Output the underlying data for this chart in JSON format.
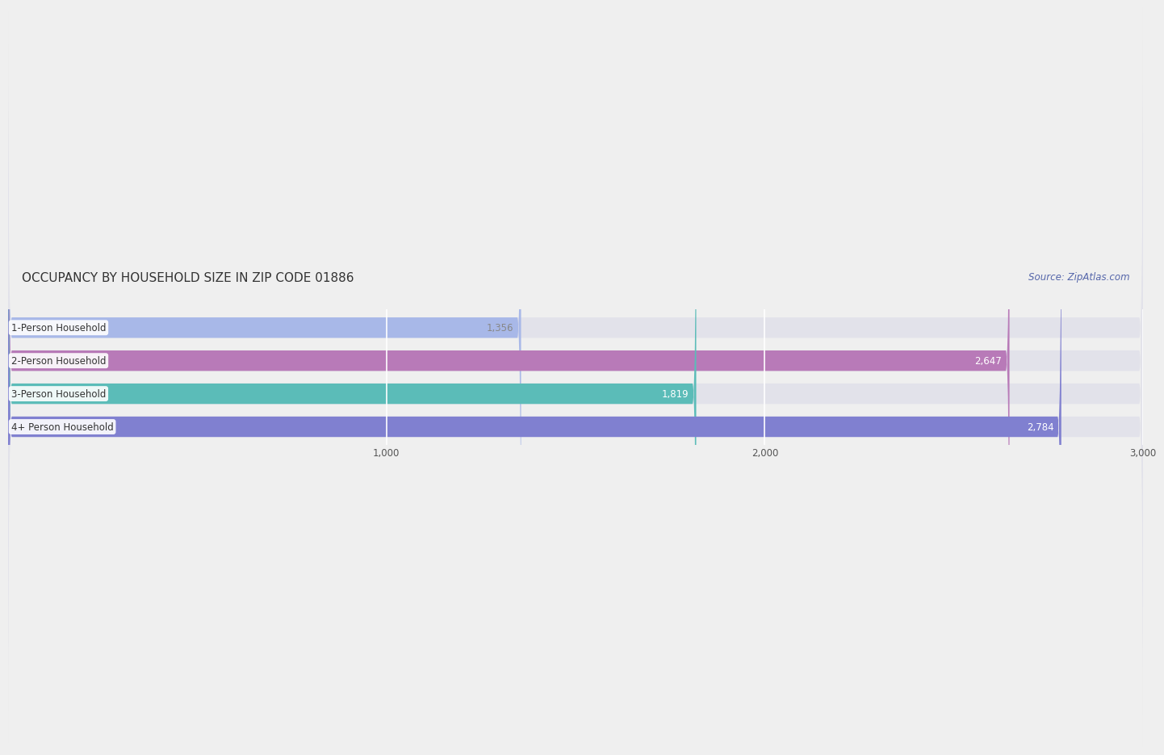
{
  "title": "OCCUPANCY BY HOUSEHOLD SIZE IN ZIP CODE 01886",
  "source": "Source: ZipAtlas.com",
  "categories": [
    "1-Person Household",
    "2-Person Household",
    "3-Person Household",
    "4+ Person Household"
  ],
  "values": [
    1356,
    2647,
    1819,
    2784
  ],
  "bar_colors": [
    "#a8b8e8",
    "#b87ab8",
    "#5bbcb8",
    "#8080d0"
  ],
  "bar_label_colors": [
    "#888888",
    "#ffffff",
    "#ffffff",
    "#ffffff"
  ],
  "value_labels": [
    "1,356",
    "2,647",
    "1,819",
    "2,784"
  ],
  "xlim": [
    0,
    3000
  ],
  "xticks": [
    1000,
    2000,
    3000
  ],
  "xtick_labels": [
    "1,000",
    "2,000",
    "3,000"
  ],
  "background_color": "#efefef",
  "bar_background_color": "#e2e2ea",
  "title_fontsize": 11,
  "label_fontsize": 8.5,
  "value_fontsize": 8.5,
  "source_fontsize": 8.5
}
